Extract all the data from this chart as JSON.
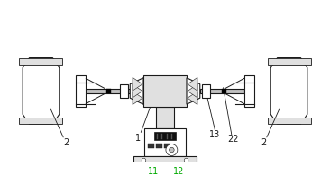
{
  "bg_color": "#ffffff",
  "line_color": "#1a1a1a",
  "gray_light": "#e0e0e0",
  "gray_mid": "#c0c0c0",
  "gray_dark": "#a0a0a0",
  "label_color": "#1a1a1a",
  "green_color": "#00aa00",
  "figsize": [
    3.66,
    1.95
  ],
  "dpi": 100
}
